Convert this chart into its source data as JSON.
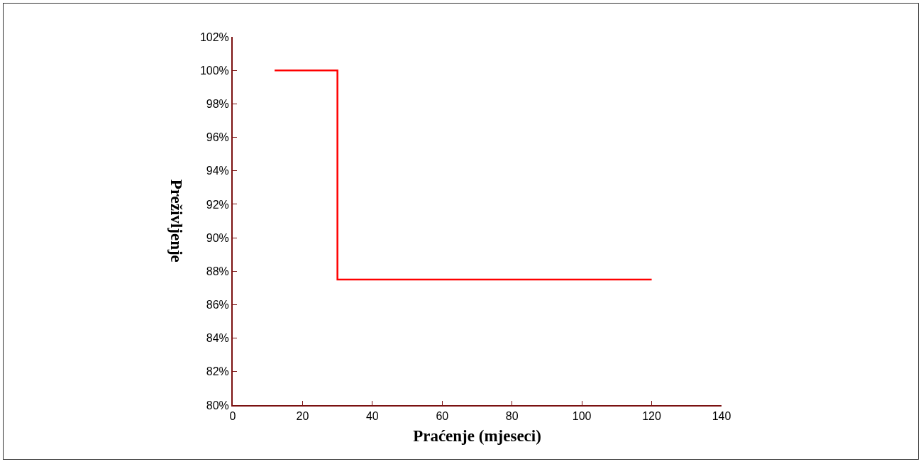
{
  "chart_data": {
    "type": "step",
    "xlabel": "Praćenje (mjeseci)",
    "ylabel": "Preživljenje",
    "x": [
      12,
      30,
      120
    ],
    "series": [
      {
        "color": "#ff0000",
        "values": [
          100,
          87.5,
          87.5
        ]
      }
    ],
    "xlim": [
      0,
      140
    ],
    "xticks": [
      0,
      20,
      40,
      60,
      80,
      100,
      120,
      140
    ],
    "ylim": [
      80,
      102
    ],
    "yticks": [
      {
        "value": 80,
        "label": "80%"
      },
      {
        "value": 82,
        "label": "82%"
      },
      {
        "value": 84,
        "label": "84%"
      },
      {
        "value": 86,
        "label": "86%"
      },
      {
        "value": 88,
        "label": "88%"
      },
      {
        "value": 90,
        "label": "90%"
      },
      {
        "value": 92,
        "label": "92%"
      },
      {
        "value": 94,
        "label": "94%"
      },
      {
        "value": 96,
        "label": "96%"
      },
      {
        "value": 98,
        "label": "98%"
      },
      {
        "value": 100,
        "label": "100%"
      },
      {
        "value": 102,
        "label": "102%"
      }
    ],
    "grid": false,
    "line_style": "solid"
  }
}
